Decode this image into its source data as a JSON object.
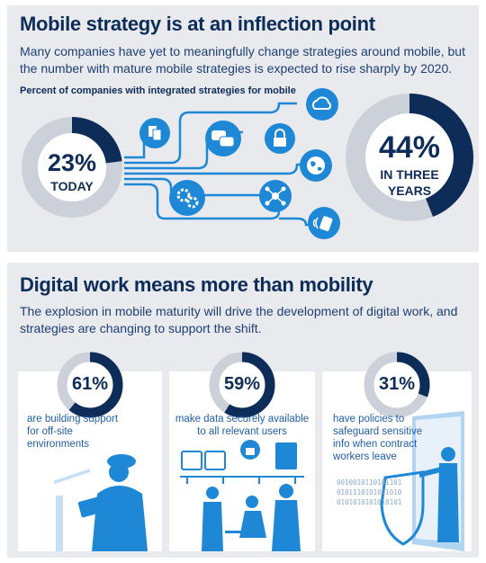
{
  "section1": {
    "title": "Mobile strategy is at an inflection point",
    "description": "Many companies have yet to meaningfully change strategies around mobile, but the number with mature mobile strategies is expected to rise sharply by 2020.",
    "subheading": "Percent of companies with integrated strategies for mobile",
    "today": {
      "value": "23%",
      "label": "TODAY",
      "fraction": 0.23
    },
    "future": {
      "value": "44%",
      "label_line1": "IN THREE",
      "label_line2": "YEARS",
      "fraction": 0.44
    },
    "icons": [
      "cloud-icon",
      "file-transfer-icon",
      "chat-bubbles-icon",
      "lock-icon",
      "globe-icon",
      "gears-icon",
      "network-icon",
      "contactless-payment-icon"
    ]
  },
  "section2": {
    "title": "Digital work means more than mobility",
    "description": "The explosion in mobile maturity will drive the development of digital work, and strategies are changing to support the shift.",
    "cards": [
      {
        "value": "61%",
        "fraction": 0.61,
        "lines": [
          "are building support",
          "for off-site",
          "environments"
        ]
      },
      {
        "value": "59%",
        "fraction": 0.59,
        "lines": [
          "make data securely available",
          "to all relevant users"
        ]
      },
      {
        "value": "31%",
        "fraction": 0.31,
        "lines": [
          "have policies to",
          "safeguard sensitive",
          "info when contract",
          "workers leave"
        ]
      }
    ],
    "binary_lines": [
      "0010010110101101",
      "0101110101001010",
      "0101010101010101"
    ]
  },
  "colors": {
    "navy": "#0d2c57",
    "ring_gray": "#ccd1d9",
    "accent_blue": "#1f88d6",
    "text_blue": "#1f5fa8",
    "panel": "#e8eaee"
  }
}
